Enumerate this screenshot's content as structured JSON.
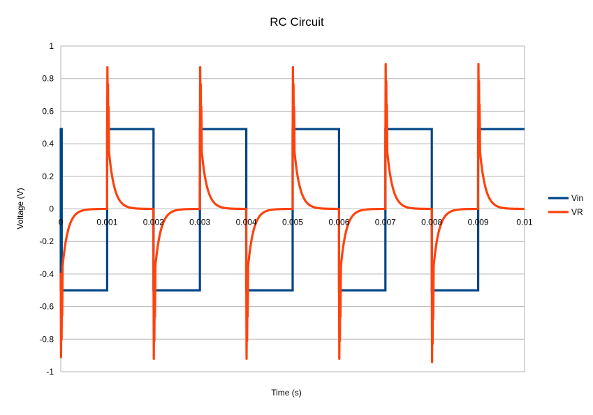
{
  "chart_data": {
    "type": "line",
    "title": "RC Circuit",
    "xlabel": "Time (s)",
    "ylabel": "Voltage (V)",
    "xlim": [
      0,
      0.01
    ],
    "ylim": [
      -1,
      1
    ],
    "grid": true,
    "legend_position": "right",
    "x_ticks": [
      "0",
      "0.001",
      "0.002",
      "0.003",
      "0.004",
      "0.005",
      "0.006",
      "0.007",
      "0.008",
      "0.009",
      "0.01"
    ],
    "y_ticks": [
      "1",
      "0.8",
      "0.6",
      "0.4",
      "0.2",
      "0",
      "-0.2",
      "-0.4",
      "-0.6",
      "-0.8",
      "-1"
    ],
    "square_wave": {
      "period": 0.002,
      "high": 0.49,
      "low": -0.5,
      "first_rise": 0.001
    },
    "rc_response": {
      "amplitude": 0.49,
      "time_constant": 0.00012,
      "spike_max": [
        0.87,
        0.87,
        0.87,
        0.89,
        0.89
      ],
      "spike_min": [
        -0.91,
        -0.92,
        -0.92,
        -0.92,
        -0.94
      ]
    },
    "series": [
      {
        "name": "Vin",
        "color": "#004586"
      },
      {
        "name": "VR",
        "color": "#ff420e"
      }
    ]
  }
}
